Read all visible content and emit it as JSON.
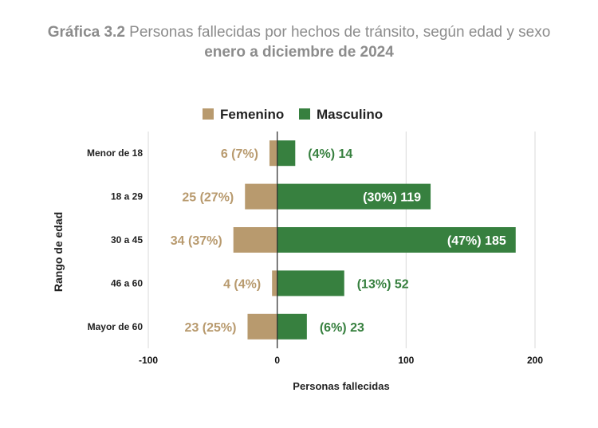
{
  "title": {
    "prefix": "Gráfica 3.2",
    "main": "Personas fallecidas por hechos de tránsito, según edad y sexo",
    "subtitle": "enero a diciembre de 2024"
  },
  "chart_data": {
    "type": "bar",
    "orientation": "horizontal",
    "stacked": true,
    "xlabel": "Personas fallecidas",
    "ylabel": "Rango de edad",
    "xlim": [
      -100,
      200
    ],
    "xticks": [
      -100,
      0,
      100,
      200
    ],
    "xtick_labels": [
      "-100",
      "0",
      "100",
      "200"
    ],
    "grid": true,
    "legend": "top-center",
    "categories": [
      "Menor de 18",
      "18 a 29",
      "30 a 45",
      "46 a 60",
      "Mayor de 60"
    ],
    "series": [
      {
        "name": "Femenino",
        "color": "#b89a6e",
        "values": [
          -6,
          -25,
          -34,
          -4,
          -23
        ],
        "labels": [
          "6 (7%)",
          "25 (27%)",
          "34 (37%)",
          "4 (4%)",
          "23 (25%)"
        ]
      },
      {
        "name": "Masculino",
        "color": "#37803f",
        "values": [
          14,
          119,
          185,
          52,
          23
        ],
        "labels": [
          "(4%) 14",
          "(30%) 119",
          "(47%) 185",
          "(13%) 52",
          "(6%) 23"
        ]
      }
    ]
  }
}
